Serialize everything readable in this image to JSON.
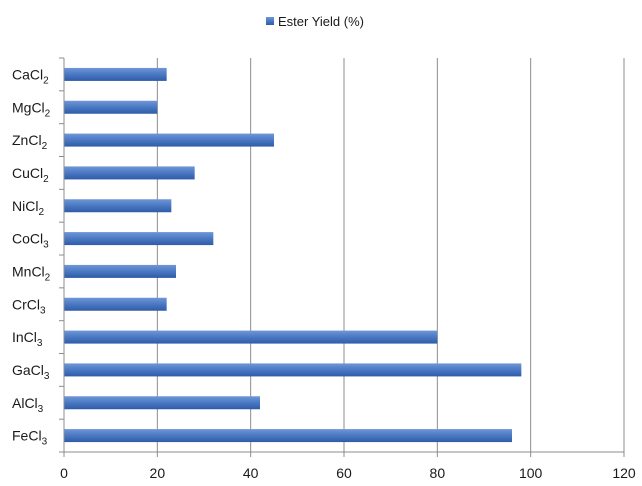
{
  "chart_data": {
    "type": "bar",
    "orientation": "horizontal",
    "categories": [
      {
        "base": "CaCl",
        "sub": "2"
      },
      {
        "base": "MgCl",
        "sub": "2"
      },
      {
        "base": "ZnCl",
        "sub": "2"
      },
      {
        "base": "CuCl",
        "sub": "2"
      },
      {
        "base": "NiCl",
        "sub": "2"
      },
      {
        "base": "CoCl",
        "sub": "3"
      },
      {
        "base": "MnCl",
        "sub": "2"
      },
      {
        "base": "CrCl",
        "sub": "3"
      },
      {
        "base": "InCl",
        "sub": "3"
      },
      {
        "base": "GaCl",
        "sub": "3"
      },
      {
        "base": "AlCl",
        "sub": "3"
      },
      {
        "base": "FeCl",
        "sub": "3"
      }
    ],
    "series": [
      {
        "name": "Ester Yield (%)",
        "color": "#4a78c2",
        "values": [
          22,
          20,
          45,
          28,
          23,
          32,
          24,
          22,
          80,
          98,
          42,
          96
        ]
      }
    ],
    "xlim": [
      0,
      120
    ],
    "xticks": [
      "0",
      "20",
      "40",
      "60",
      "80",
      "100",
      "120"
    ],
    "grid": true,
    "legend_position": "top-center"
  }
}
